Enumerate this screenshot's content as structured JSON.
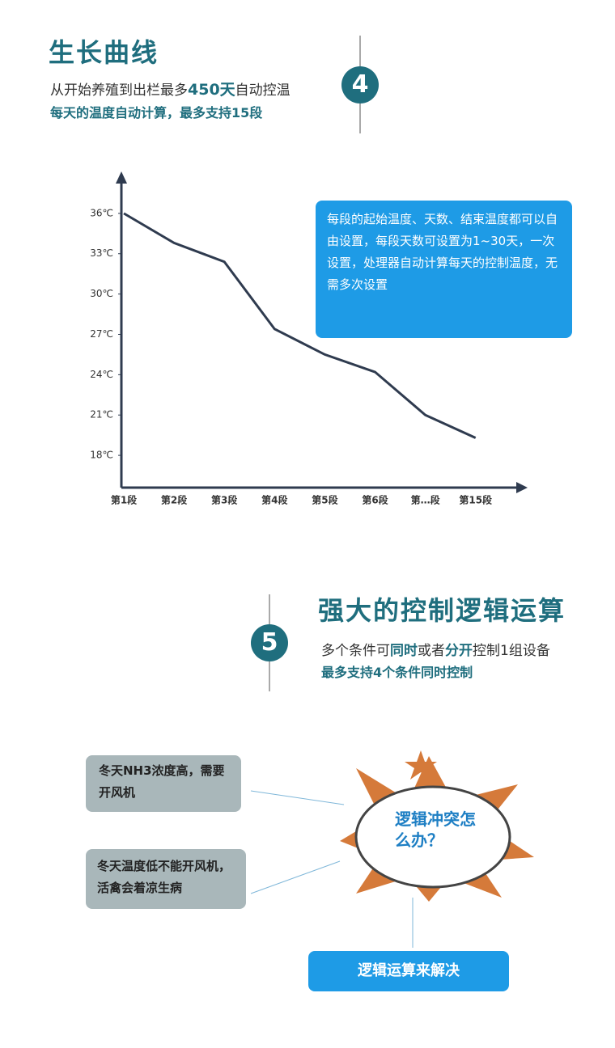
{
  "section4": {
    "number": "4",
    "title": "生长曲线",
    "line1": [
      "从开始养殖到出栏最多",
      "450天",
      "自动控温"
    ],
    "line2": "每天的温度自动计算，最多支持15段"
  },
  "chart_data": {
    "type": "line",
    "categories": [
      "第1段",
      "第2段",
      "第3段",
      "第4段",
      "第5段",
      "第6段",
      "第…段",
      "第15段"
    ],
    "values": [
      36,
      33.8,
      32.4,
      27.4,
      25.5,
      24.2,
      21,
      19.3
    ],
    "color": "#2f3b4f",
    "ylim": [
      15.6,
      39
    ],
    "yticks": [
      {
        "value": 18,
        "label": "18℃"
      },
      {
        "value": 21,
        "label": "21℃"
      },
      {
        "value": 24,
        "label": "24℃"
      },
      {
        "value": 27,
        "label": "27℃"
      },
      {
        "value": 30,
        "label": "30℃"
      },
      {
        "value": 33,
        "label": "33℃"
      },
      {
        "value": 36,
        "label": "36℃"
      }
    ],
    "annotation": "每段的起始温度、天数、结束温度都可以自由设置，每段天数可设置为1~30天，一次设置，处理器自动计算每天的控制温度，无需多次设置"
  },
  "section5": {
    "number": "5",
    "title": "强大的控制逻辑运算",
    "line1": [
      "多个条件可",
      "同时",
      "或者",
      "分开",
      "控制1组设备"
    ],
    "line2": "最多支持4个条件同时控制"
  },
  "diagram": {
    "condition_1": "冬天NH3浓度高，需要开风机",
    "condition_2": "冬天温度低不能开风机，活禽会着凉生病",
    "conflict": "逻辑冲突怎么办？",
    "solution": "逻辑运算来解决"
  }
}
